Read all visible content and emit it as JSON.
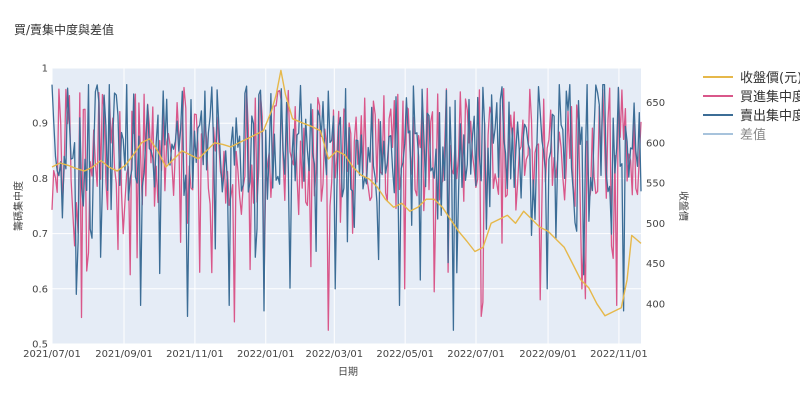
{
  "chart_data": {
    "type": "line",
    "title": "買/賣集中度與差值",
    "xlabel": "日期",
    "ylabel": "籌碼集中度",
    "y2label": "收盤價",
    "x_range": [
      "2021-07-01",
      "2022-11-20"
    ],
    "ylim": [
      0.5,
      1.0
    ],
    "y2lim": [
      350,
      693
    ],
    "x_ticks": [
      "2021/07/01",
      "2021/09/01",
      "2021/11/01",
      "2022/01/01",
      "2022/03/01",
      "2022/05/01",
      "2022/07/01",
      "2022/09/01",
      "2022/11/01"
    ],
    "y_ticks": [
      "0.5",
      "0.6",
      "0.7",
      "0.8",
      "0.9",
      "1"
    ],
    "y2_ticks": [
      "400",
      "450",
      "500",
      "550",
      "600",
      "650"
    ],
    "legend_position": "right",
    "grid": true,
    "series": [
      {
        "name": "收盤價(元)",
        "axis": "y2",
        "color": "#e6b84a",
        "points": [
          [
            "2021-07-01",
            570
          ],
          [
            "2021-07-08",
            575
          ],
          [
            "2021-07-15",
            572
          ],
          [
            "2021-07-22",
            568
          ],
          [
            "2021-07-29",
            565
          ],
          [
            "2021-08-05",
            570
          ],
          [
            "2021-08-12",
            578
          ],
          [
            "2021-08-19",
            570
          ],
          [
            "2021-08-26",
            565
          ],
          [
            "2021-09-02",
            572
          ],
          [
            "2021-09-09",
            585
          ],
          [
            "2021-09-16",
            600
          ],
          [
            "2021-09-23",
            605
          ],
          [
            "2021-09-30",
            590
          ],
          [
            "2021-10-07",
            570
          ],
          [
            "2021-10-14",
            580
          ],
          [
            "2021-10-21",
            590
          ],
          [
            "2021-10-28",
            585
          ],
          [
            "2021-11-04",
            580
          ],
          [
            "2021-11-11",
            590
          ],
          [
            "2021-11-18",
            600
          ],
          [
            "2021-11-25",
            598
          ],
          [
            "2021-12-02",
            595
          ],
          [
            "2021-12-09",
            600
          ],
          [
            "2021-12-16",
            605
          ],
          [
            "2021-12-23",
            610
          ],
          [
            "2021-12-30",
            615
          ],
          [
            "2022-01-06",
            640
          ],
          [
            "2022-01-10",
            660
          ],
          [
            "2022-01-14",
            690
          ],
          [
            "2022-01-18",
            660
          ],
          [
            "2022-01-24",
            630
          ],
          [
            "2022-02-01",
            625
          ],
          [
            "2022-02-10",
            620
          ],
          [
            "2022-02-17",
            615
          ],
          [
            "2022-02-24",
            580
          ],
          [
            "2022-03-03",
            590
          ],
          [
            "2022-03-10",
            585
          ],
          [
            "2022-03-17",
            570
          ],
          [
            "2022-03-24",
            560
          ],
          [
            "2022-03-31",
            555
          ],
          [
            "2022-04-07",
            545
          ],
          [
            "2022-04-14",
            530
          ],
          [
            "2022-04-21",
            520
          ],
          [
            "2022-04-28",
            525
          ],
          [
            "2022-05-05",
            515
          ],
          [
            "2022-05-12",
            520
          ],
          [
            "2022-05-19",
            530
          ],
          [
            "2022-05-26",
            530
          ],
          [
            "2022-06-02",
            520
          ],
          [
            "2022-06-09",
            505
          ],
          [
            "2022-06-16",
            490
          ],
          [
            "2022-06-23",
            478
          ],
          [
            "2022-06-30",
            465
          ],
          [
            "2022-07-07",
            470
          ],
          [
            "2022-07-14",
            500
          ],
          [
            "2022-07-21",
            505
          ],
          [
            "2022-07-28",
            510
          ],
          [
            "2022-08-04",
            500
          ],
          [
            "2022-08-11",
            515
          ],
          [
            "2022-08-18",
            505
          ],
          [
            "2022-08-25",
            495
          ],
          [
            "2022-09-01",
            490
          ],
          [
            "2022-09-08",
            480
          ],
          [
            "2022-09-15",
            470
          ],
          [
            "2022-09-22",
            450
          ],
          [
            "2022-09-29",
            430
          ],
          [
            "2022-10-06",
            420
          ],
          [
            "2022-10-13",
            400
          ],
          [
            "2022-10-20",
            385
          ],
          [
            "2022-10-27",
            390
          ],
          [
            "2022-11-03",
            395
          ],
          [
            "2022-11-08",
            430
          ],
          [
            "2022-11-12",
            485
          ],
          [
            "2022-11-16",
            480
          ],
          [
            "2022-11-20",
            475
          ]
        ]
      },
      {
        "name": "買進集中度",
        "axis": "y",
        "color": "#d9578a",
        "n": 340,
        "base": 0.855,
        "amp": 0.11,
        "dips": [
          [
            0.05,
            0.548
          ],
          [
            0.12,
            0.7
          ],
          [
            0.25,
            0.63
          ],
          [
            0.31,
            0.54
          ],
          [
            0.36,
            0.6
          ],
          [
            0.47,
            0.525
          ],
          [
            0.6,
            0.6
          ],
          [
            0.73,
            0.55
          ],
          [
            0.83,
            0.58
          ],
          [
            0.9,
            0.6
          ],
          [
            0.96,
            0.57
          ]
        ]
      },
      {
        "name": "賣出集中度",
        "axis": "y",
        "color": "#3c6d96",
        "n": 340,
        "base": 0.875,
        "amp": 0.1,
        "dips": [
          [
            0.04,
            0.59
          ],
          [
            0.15,
            0.57
          ],
          [
            0.23,
            0.55
          ],
          [
            0.3,
            0.57
          ],
          [
            0.36,
            0.56
          ],
          [
            0.48,
            0.6
          ],
          [
            0.59,
            0.57
          ],
          [
            0.68,
            0.525
          ],
          [
            0.84,
            0.6
          ],
          [
            0.97,
            0.56
          ]
        ]
      },
      {
        "name": "差值",
        "axis": "y",
        "color": "#a7c3dc",
        "points": []
      }
    ]
  }
}
